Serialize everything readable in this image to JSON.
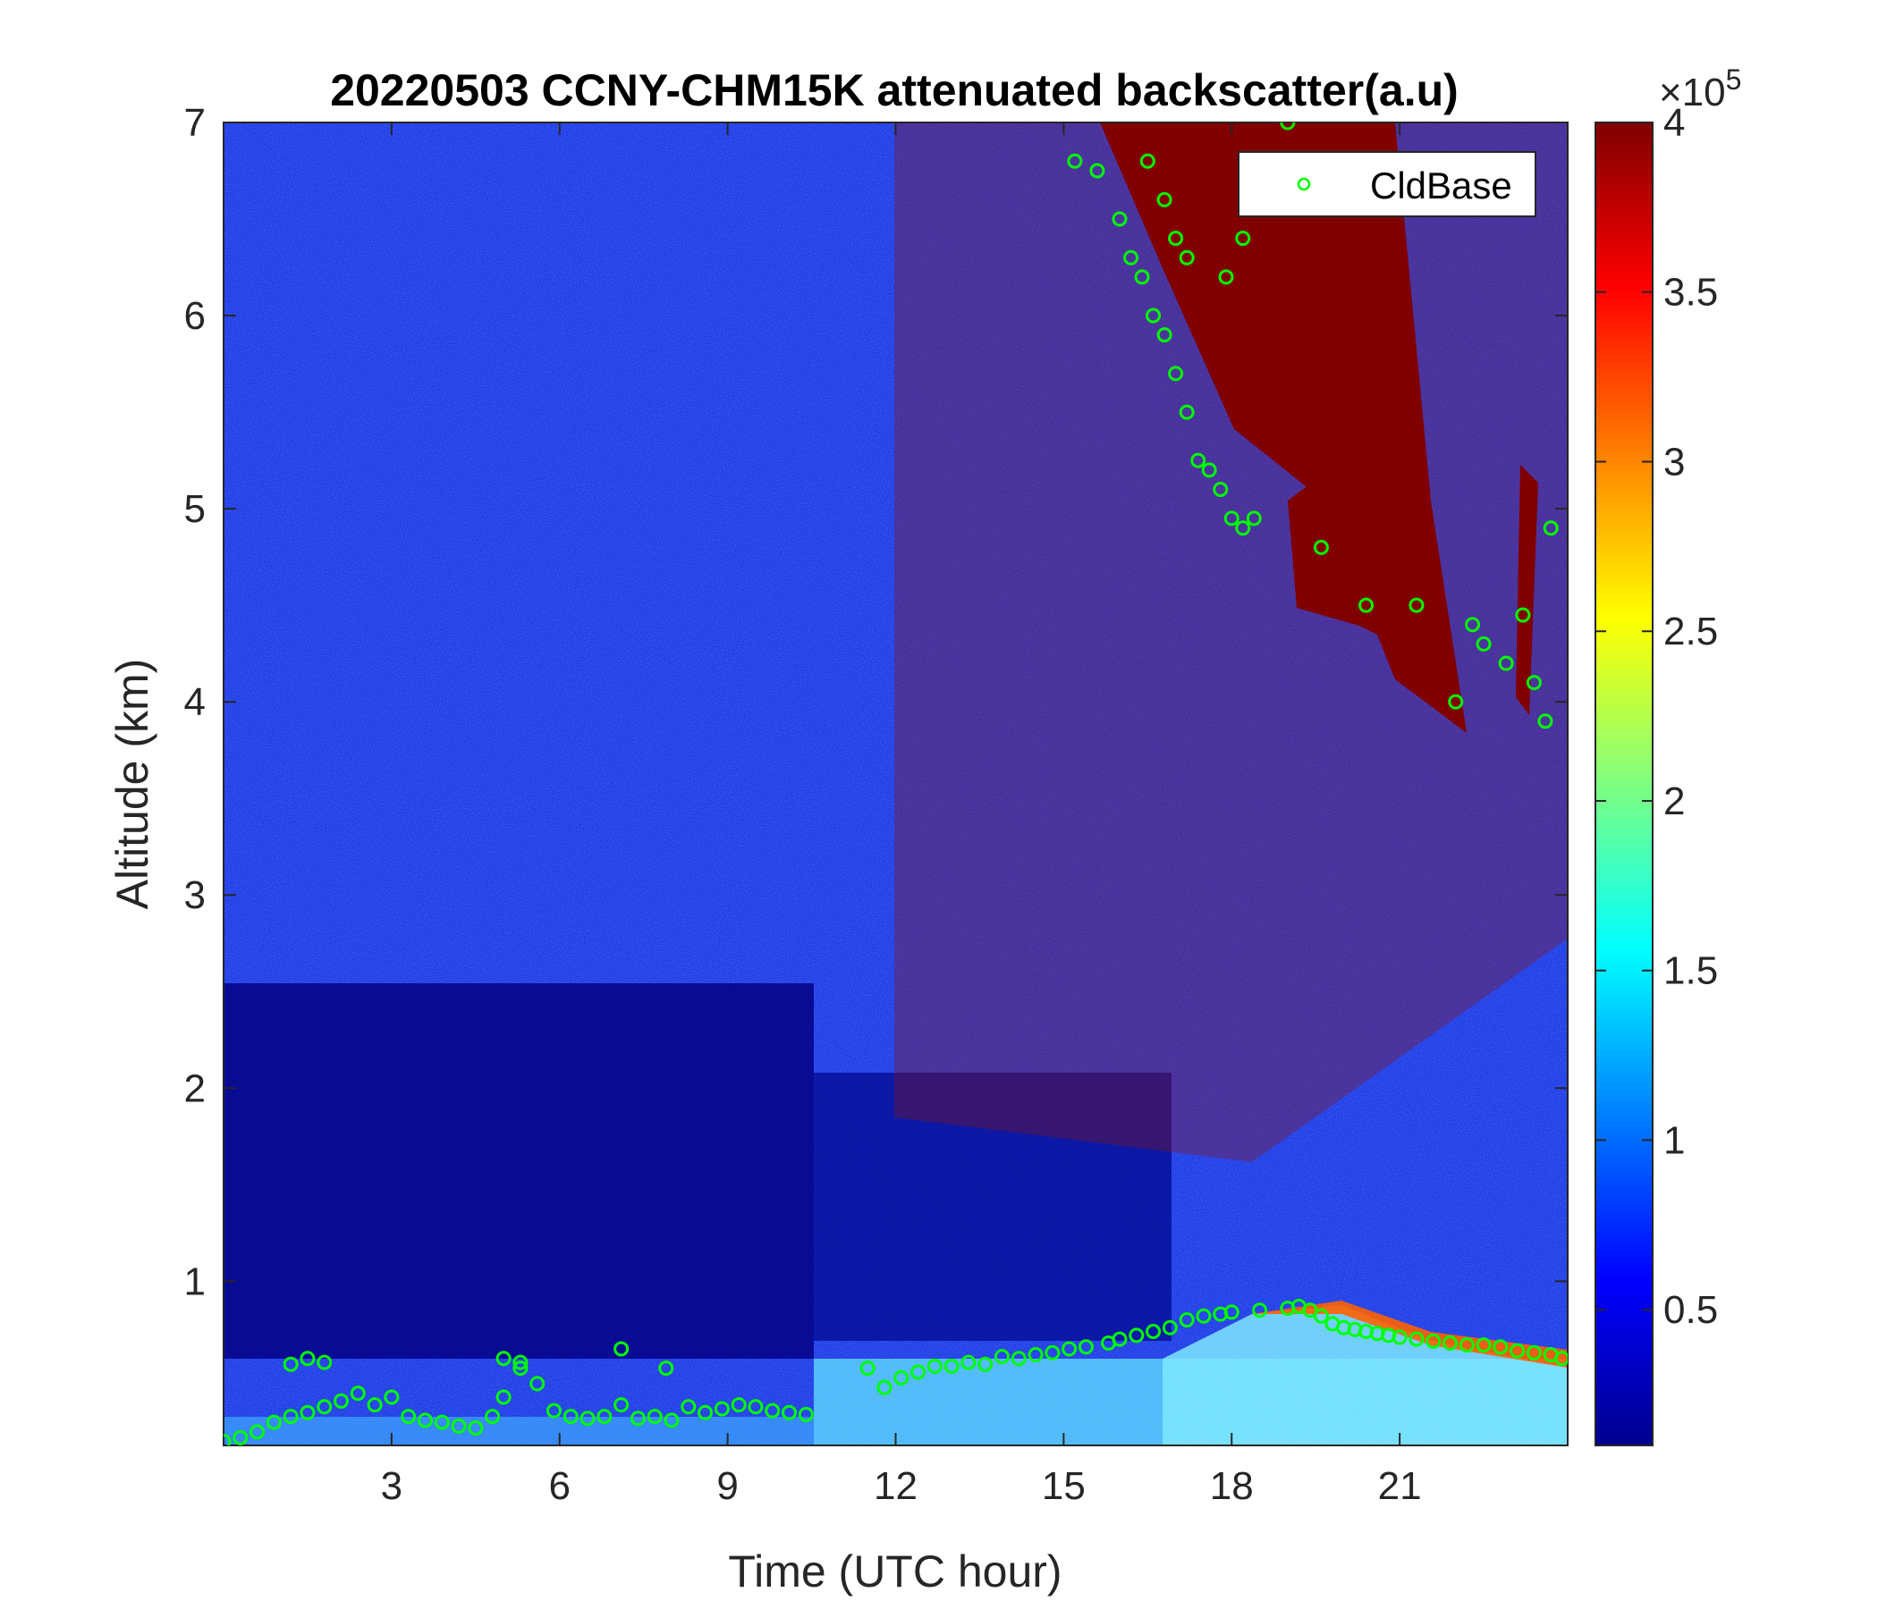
{
  "chart_data": {
    "type": "heatmap",
    "title": "20220503 CCNY-CHM15K attenuated backscatter(a.u)",
    "xlabel": "Time (UTC hour)",
    "ylabel": "Altitude (km)",
    "xlim": [
      0,
      24
    ],
    "ylim": [
      0.15,
      7
    ],
    "x_ticks": [
      3,
      6,
      9,
      12,
      15,
      18,
      21
    ],
    "x_tick_labels": [
      "3",
      "6",
      "9",
      "12",
      "15",
      "18",
      "21"
    ],
    "y_ticks": [
      1,
      2,
      3,
      4,
      5,
      6,
      7
    ],
    "y_tick_labels": [
      "1",
      "2",
      "3",
      "4",
      "5",
      "6",
      "7"
    ],
    "colorbar": {
      "colormap": "jet",
      "clim": [
        0.1,
        4
      ],
      "ticks": [
        0.5,
        1,
        1.5,
        2,
        2.5,
        3,
        3.5,
        4
      ],
      "tick_labels": [
        "0.5",
        "1",
        "1.5",
        "2",
        "2.5",
        "3",
        "3.5",
        "4"
      ],
      "multiplier_prefix": "×10",
      "multiplier_exponent": "5"
    },
    "legend": {
      "position": "top-right",
      "entries": [
        "CldBase"
      ]
    },
    "series": [
      {
        "name": "CldBase",
        "marker": "circle",
        "color": "#00ff00",
        "x": [
          0.0,
          0.3,
          0.6,
          0.9,
          1.2,
          1.5,
          1.8,
          2.1,
          2.4,
          2.7,
          3.0,
          3.3,
          3.6,
          3.9,
          4.2,
          4.5,
          4.8,
          5.0,
          5.3,
          5.6,
          5.9,
          6.2,
          6.5,
          6.8,
          7.1,
          7.4,
          7.7,
          8.0,
          8.3,
          8.6,
          8.9,
          9.2,
          9.5,
          9.8,
          10.1,
          10.4,
          11.5,
          11.8,
          12.1,
          12.4,
          12.7,
          13.0,
          13.3,
          13.6,
          13.9,
          14.2,
          14.5,
          14.8,
          15.1,
          15.4,
          15.8,
          16.0,
          16.3,
          16.6,
          16.9,
          17.2,
          17.5,
          17.8,
          18.0,
          18.5,
          19.0,
          19.2,
          19.4,
          19.6,
          19.8,
          20.0,
          20.2,
          20.4,
          20.6,
          20.8,
          21.0,
          21.3,
          21.6,
          21.9,
          22.2,
          22.5,
          22.8,
          23.1,
          23.4,
          23.7,
          23.9,
          1.2,
          1.5,
          1.8,
          5.0,
          5.3,
          7.1,
          7.9,
          15.2,
          15.6,
          16.0,
          16.2,
          16.4,
          16.6,
          16.8,
          17.0,
          17.2,
          17.4,
          17.6,
          17.8,
          18.0,
          18.2,
          18.4,
          16.5,
          16.8,
          17.0,
          17.2,
          17.9,
          18.2,
          19.0,
          21.3,
          22.0,
          22.3,
          22.5,
          22.9,
          23.2,
          23.4,
          23.6,
          23.7,
          19.6,
          20.4
        ],
        "y": [
          0.17,
          0.19,
          0.22,
          0.27,
          0.3,
          0.32,
          0.35,
          0.38,
          0.42,
          0.36,
          0.4,
          0.3,
          0.28,
          0.27,
          0.25,
          0.24,
          0.3,
          0.4,
          0.55,
          0.47,
          0.33,
          0.3,
          0.29,
          0.3,
          0.36,
          0.29,
          0.3,
          0.28,
          0.35,
          0.32,
          0.34,
          0.36,
          0.35,
          0.33,
          0.32,
          0.31,
          0.55,
          0.45,
          0.5,
          0.53,
          0.56,
          0.56,
          0.58,
          0.57,
          0.61,
          0.6,
          0.62,
          0.63,
          0.65,
          0.66,
          0.68,
          0.7,
          0.72,
          0.74,
          0.76,
          0.8,
          0.82,
          0.83,
          0.84,
          0.85,
          0.86,
          0.87,
          0.85,
          0.82,
          0.78,
          0.76,
          0.75,
          0.74,
          0.73,
          0.72,
          0.71,
          0.7,
          0.69,
          0.68,
          0.67,
          0.67,
          0.66,
          0.64,
          0.63,
          0.62,
          0.6,
          0.57,
          0.6,
          0.58,
          0.6,
          0.58,
          0.65,
          0.55,
          6.8,
          6.75,
          6.5,
          6.3,
          6.2,
          6.0,
          5.9,
          5.7,
          5.5,
          5.25,
          5.2,
          5.1,
          4.95,
          4.9,
          4.95,
          6.8,
          6.6,
          6.4,
          6.3,
          6.2,
          6.4,
          7.0,
          4.5,
          4.0,
          4.4,
          4.3,
          4.2,
          4.45,
          4.1,
          3.9,
          4.9,
          4.8,
          4.5
        ],
        "note_points_approx": true
      }
    ]
  }
}
